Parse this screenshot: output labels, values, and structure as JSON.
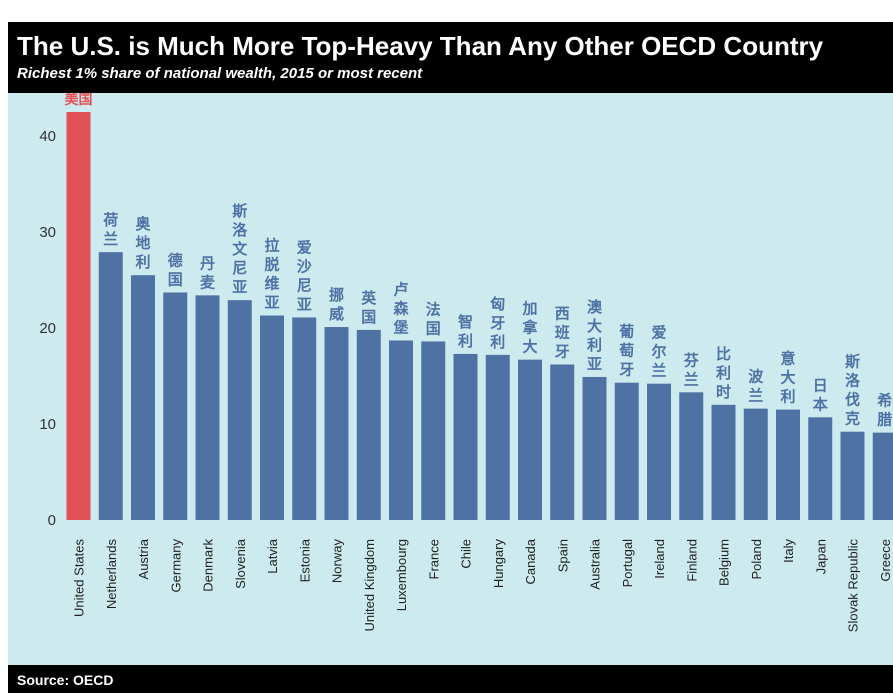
{
  "header": {
    "title": "The U.S. is Much More Top-Heavy Than Any Other OECD Country",
    "subtitle": "Richest 1% share of national wealth, 2015 or most recent"
  },
  "footer": {
    "source": "Source: OECD"
  },
  "colors": {
    "highlight": "#e05256",
    "bar": "#4e72a4",
    "highlight_label": "#e05256",
    "label": "#4e72a4",
    "background": "#cdebee"
  },
  "chart_data": {
    "type": "bar",
    "title": "The U.S. is Much More Top-Heavy Than Any Other OECD Country",
    "subtitle": "Richest 1% share of national wealth, 2015 or most recent",
    "xlabel": "",
    "ylabel": "",
    "ylim": [
      0,
      44
    ],
    "yticks": [
      0,
      10,
      20,
      30,
      40
    ],
    "grid": false,
    "categories": [
      "United States",
      "Netherlands",
      "Austria",
      "Germany",
      "Denmark",
      "Slovenia",
      "Latvia",
      "Estonia",
      "Norway",
      "United Kingdom",
      "Luxembourg",
      "France",
      "Chile",
      "Hungary",
      "Canada",
      "Spain",
      "Australia",
      "Portugal",
      "Ireland",
      "Finland",
      "Belgium",
      "Poland",
      "Italy",
      "Japan",
      "Slovak Republic",
      "Greece"
    ],
    "labels_cn": [
      "美国",
      "荷兰",
      "奥地利",
      "德国",
      "丹麦",
      "斯洛文尼亚",
      "拉脱维亚",
      "爱沙尼亚",
      "挪威",
      "英国",
      "卢森堡",
      "法国",
      "智利",
      "匈牙利",
      "加拿大",
      "西班牙",
      "澳大利亚",
      "葡萄牙",
      "爱尔兰",
      "芬兰",
      "比利时",
      "波兰",
      "意大利",
      "日本",
      "斯洛伐克",
      "希腊"
    ],
    "values": [
      42.5,
      27.9,
      25.5,
      23.7,
      23.4,
      22.9,
      21.3,
      21.1,
      20.1,
      19.8,
      18.7,
      18.6,
      17.3,
      17.2,
      16.7,
      16.2,
      14.9,
      14.3,
      14.2,
      13.3,
      12.0,
      11.6,
      11.5,
      10.7,
      9.2,
      9.1
    ],
    "highlight_index": 0
  }
}
